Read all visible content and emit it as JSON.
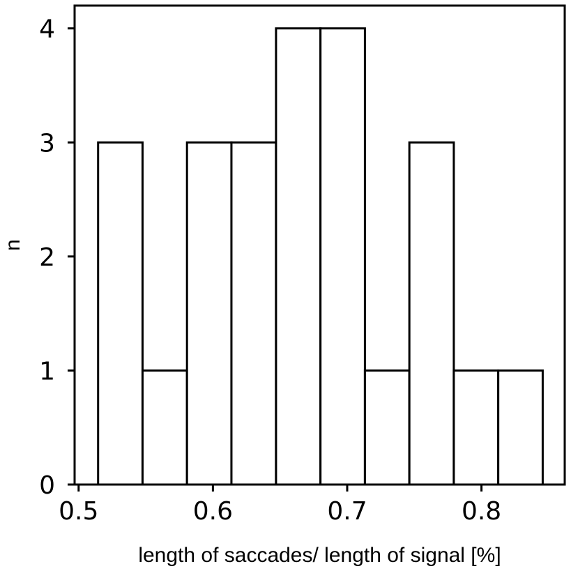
{
  "chart_data": {
    "type": "bar",
    "subtype": "histogram",
    "title": "",
    "xlabel": "length of saccades/ length of signal [%]",
    "ylabel": "n",
    "xlim": [
      0.497,
      0.862
    ],
    "ylim": [
      0,
      4.2
    ],
    "x_ticks": [
      0.5,
      0.6,
      0.7,
      0.8
    ],
    "x_tick_labels": [
      "0.5",
      "0.6",
      "0.7",
      "0.8"
    ],
    "y_ticks": [
      0,
      1,
      2,
      3,
      4
    ],
    "y_tick_labels": [
      "0",
      "1",
      "2",
      "3",
      "4"
    ],
    "bin_edges": [
      0.5145,
      0.5476,
      0.5807,
      0.6138,
      0.647,
      0.6801,
      0.7132,
      0.7463,
      0.7794,
      0.8125,
      0.8456
    ],
    "values": [
      3,
      1,
      3,
      3,
      4,
      4,
      1,
      3,
      1,
      1
    ],
    "bar_fill": "#ffffff",
    "bar_edge_color": "#000000",
    "grid": false,
    "legend": "none"
  }
}
